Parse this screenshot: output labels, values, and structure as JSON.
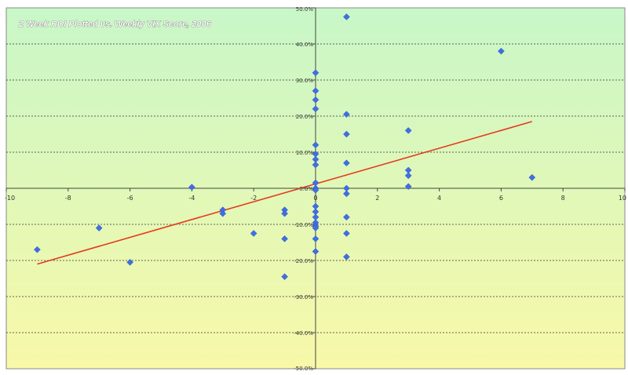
{
  "chart_data": {
    "type": "scatter",
    "title": "2 Week ROI Plotted vs. Weekly VIX Score, 2006",
    "xlabel": "",
    "ylabel": "",
    "xlim": [
      -10,
      10
    ],
    "ylim": [
      -50,
      50
    ],
    "x_ticks": [
      -10,
      -8,
      -6,
      -4,
      -2,
      0,
      2,
      4,
      6,
      8,
      10
    ],
    "x_tick_labels": [
      "-10",
      "-8",
      "-6",
      "-4",
      "-2",
      "0",
      "2",
      "4",
      "6",
      "8",
      "10"
    ],
    "y_ticks": [
      50,
      40,
      30,
      20,
      10,
      0,
      -10,
      -20,
      -30,
      -40,
      -50
    ],
    "y_tick_labels": [
      "50.0%",
      "40.0%",
      "30.0%",
      "20.0%",
      "10.0%",
      "0.0%",
      "-10.0%",
      "-20.0%",
      "-30.0%",
      "-40.0%",
      "-50.0%"
    ],
    "grid": "horizontal dashed",
    "background_gradient": [
      "#c8f7c8",
      "#f8f8a8"
    ],
    "marker_color": "#3f6fe6",
    "trendline_color": "#e63a1e",
    "series": [
      {
        "points": [
          [
            -9,
            -17
          ],
          [
            -7,
            -11
          ],
          [
            -6,
            -20.5
          ],
          [
            -4,
            0.3
          ],
          [
            -3,
            -6
          ],
          [
            -3,
            -7
          ],
          [
            -2,
            -12.5
          ],
          [
            -1,
            -6
          ],
          [
            -1,
            -7
          ],
          [
            -1,
            -14
          ],
          [
            -1,
            -24.5
          ],
          [
            0,
            32
          ],
          [
            0,
            27
          ],
          [
            0,
            24.5
          ],
          [
            0,
            22
          ],
          [
            0,
            12
          ],
          [
            0,
            9.5
          ],
          [
            0,
            8
          ],
          [
            0,
            6.5
          ],
          [
            0,
            1.5
          ],
          [
            0,
            0
          ],
          [
            0,
            -0.5
          ],
          [
            0,
            -5
          ],
          [
            0,
            -6.5
          ],
          [
            0,
            -8
          ],
          [
            0,
            -9.5
          ],
          [
            0,
            -10.5
          ],
          [
            0,
            -11
          ],
          [
            0,
            -14
          ],
          [
            0,
            -17.5
          ],
          [
            1,
            47.5
          ],
          [
            1,
            20.5
          ],
          [
            1,
            15
          ],
          [
            1,
            7
          ],
          [
            1,
            0
          ],
          [
            1,
            -1.5
          ],
          [
            1,
            -8
          ],
          [
            1,
            -12.5
          ],
          [
            1,
            -19
          ],
          [
            3,
            16
          ],
          [
            3,
            5
          ],
          [
            3,
            3.5
          ],
          [
            3,
            0.5
          ],
          [
            6,
            38
          ],
          [
            7,
            3
          ]
        ]
      }
    ],
    "trendline": {
      "x": [
        -9,
        7
      ],
      "y": [
        -21,
        18.5
      ]
    }
  }
}
